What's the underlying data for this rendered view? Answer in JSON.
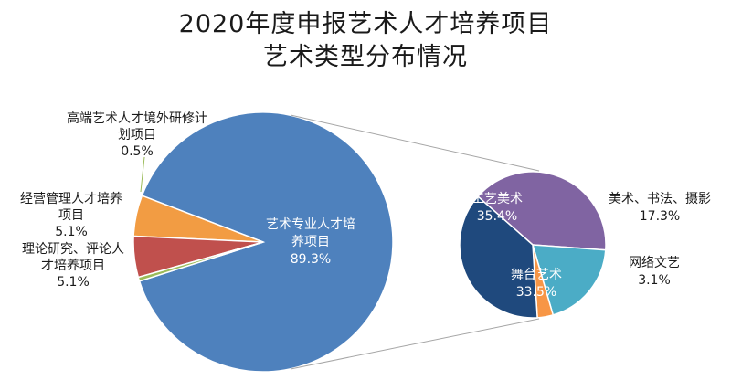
{
  "chart_data": {
    "type": "pie",
    "title_lines": [
      "2020年度申报艺术人才培养项目",
      "艺术类型分布情况"
    ],
    "main_pie": {
      "slices": [
        {
          "label_lines": [
            "艺术专业人才培",
            "养项目"
          ],
          "value_label": "89.3%",
          "value": 89.3,
          "color": "#4e81bd",
          "label_color": "#ffffff"
        },
        {
          "label_lines": [
            "理论研究、评论人",
            "才培养项目"
          ],
          "value_label": "5.1%",
          "value": 5.1,
          "color": "#f29c43",
          "label_color": "#1a1a1a"
        },
        {
          "label_lines": [
            "经营管理人才培养",
            "项目"
          ],
          "value_label": "5.1%",
          "value": 5.1,
          "color": "#c0504d",
          "label_color": "#1a1a1a"
        },
        {
          "label_lines": [
            "高端艺术人才境外研修计",
            "划项目"
          ],
          "value_label": "0.5%",
          "value": 0.5,
          "color": "#9bbb59",
          "label_color": "#1a1a1a"
        }
      ]
    },
    "sub_pie": {
      "slices": [
        {
          "label_lines": [
            "工艺美术"
          ],
          "value_label": "35.4%",
          "value": 35.4,
          "color": "#8064a2",
          "label_color": "#ffffff"
        },
        {
          "label_lines": [
            "美术、书法、摄影"
          ],
          "value_label": "17.3%",
          "value": 17.3,
          "color": "#4bacc6",
          "label_color": "#1a1a1a"
        },
        {
          "label_lines": [
            "网络文艺"
          ],
          "value_label": "3.1%",
          "value": 3.1,
          "color": "#f79646",
          "label_color": "#1a1a1a"
        },
        {
          "label_lines": [
            "舞台艺术"
          ],
          "value_label": "33.5%",
          "value": 33.5,
          "color": "#1f497d",
          "label_color": "#ffffff"
        }
      ]
    }
  }
}
